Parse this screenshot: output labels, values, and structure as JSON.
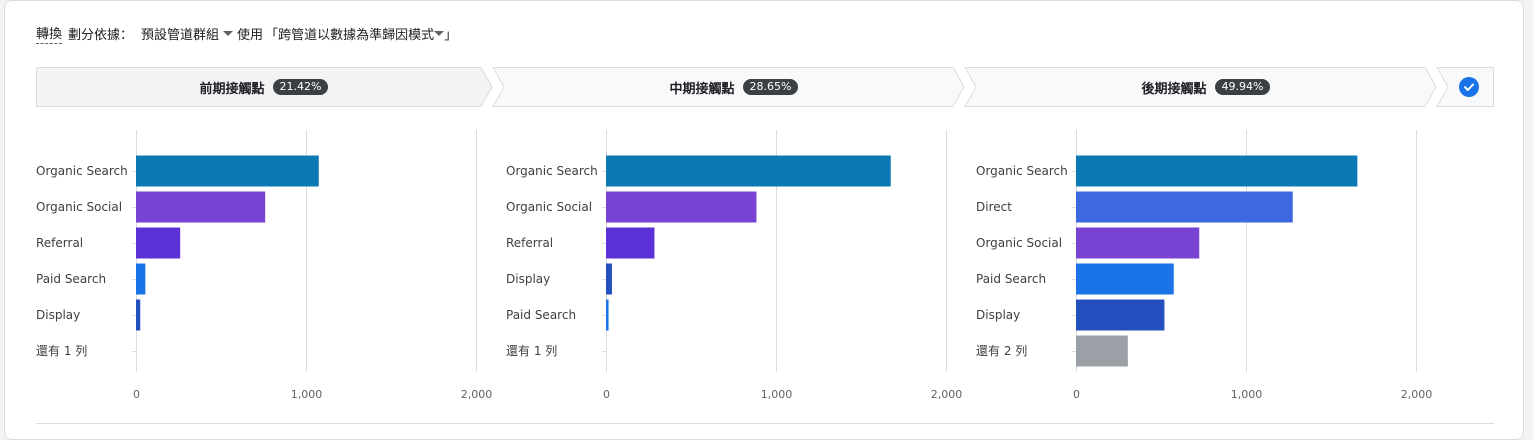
{
  "toolbar": {
    "metric": "轉換",
    "split_label": "劃分依據：",
    "group_value": "預設管道群組",
    "use_label": "使用",
    "model_value": "「跨管道以數據為準歸因模式",
    "model_close": "」"
  },
  "steps": [
    {
      "label": "前期接觸點",
      "percent": "21.42%"
    },
    {
      "label": "中期接觸點",
      "percent": "28.65%"
    },
    {
      "label": "後期接觸點",
      "percent": "49.94%"
    }
  ],
  "colors": {
    "organic_search": "#0b7ab4",
    "organic_social": "#7843d2",
    "referral": "#5b31d5",
    "paid_search": "#1a73e8",
    "display": "#2350be",
    "direct": "#3e68e0",
    "other": "#9aa0a6",
    "gridline": "#dadce0"
  },
  "chart_data": [
    {
      "type": "bar",
      "orientation": "horizontal",
      "categories": [
        "Organic Search",
        "Organic Social",
        "Referral",
        "Paid Search",
        "Display",
        "還有 1 列"
      ],
      "values": [
        1075,
        760,
        260,
        55,
        25,
        null
      ],
      "color_keys": [
        "organic_search",
        "organic_social",
        "referral",
        "paid_search",
        "display",
        "other"
      ],
      "xlim": [
        0,
        2000
      ],
      "ticks": [
        "0",
        "1,000",
        "2,000"
      ],
      "grid": true
    },
    {
      "type": "bar",
      "orientation": "horizontal",
      "categories": [
        "Organic Search",
        "Organic Social",
        "Referral",
        "Display",
        "Paid Search",
        "還有 1 列"
      ],
      "values": [
        1675,
        885,
        285,
        35,
        15,
        null
      ],
      "color_keys": [
        "organic_search",
        "organic_social",
        "referral",
        "display",
        "paid_search",
        "other"
      ],
      "xlim": [
        0,
        2000
      ],
      "ticks": [
        "0",
        "1,000",
        "2,000"
      ],
      "grid": true
    },
    {
      "type": "bar",
      "orientation": "horizontal",
      "categories": [
        "Organic Search",
        "Direct",
        "Organic Social",
        "Paid Search",
        "Display",
        "還有 2 列"
      ],
      "values": [
        1655,
        1275,
        725,
        575,
        520,
        305
      ],
      "color_keys": [
        "organic_search",
        "direct",
        "organic_social",
        "paid_search",
        "display",
        "other"
      ],
      "xlim": [
        0,
        2000
      ],
      "ticks": [
        "0",
        "1,000",
        "2,000"
      ],
      "grid": true
    }
  ]
}
